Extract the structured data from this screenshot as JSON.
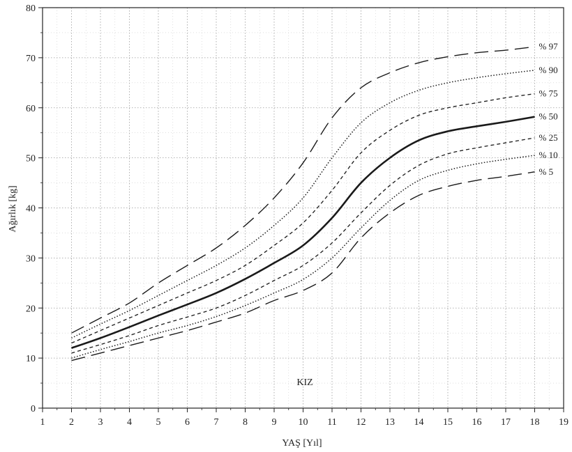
{
  "chart_data": {
    "type": "line",
    "xlabel": "YAŞ [Yıl]",
    "ylabel": "Ağırlık [kg]",
    "xlim": [
      1,
      19
    ],
    "ylim": [
      0,
      80
    ],
    "xticks": [
      1,
      2,
      3,
      4,
      5,
      6,
      7,
      8,
      9,
      10,
      11,
      12,
      13,
      14,
      15,
      16,
      17,
      18,
      19
    ],
    "yticks": [
      0,
      10,
      20,
      30,
      40,
      50,
      60,
      70,
      80
    ],
    "grid": true,
    "annotation": "KIZ",
    "x": [
      2,
      3,
      4,
      5,
      6,
      7,
      8,
      9,
      10,
      11,
      12,
      13,
      14,
      15,
      16,
      17,
      18
    ],
    "series": [
      {
        "name": "% 97",
        "style": "long-dash",
        "values": [
          15,
          18,
          21,
          25,
          28.5,
          32,
          36.5,
          42,
          49,
          58,
          64,
          67,
          69,
          70.2,
          71,
          71.5,
          72.2
        ]
      },
      {
        "name": "% 90",
        "style": "dotted",
        "values": [
          14,
          16.8,
          19.5,
          22.5,
          25.5,
          28.5,
          32,
          36.5,
          42,
          50,
          57,
          61,
          63.5,
          65,
          66,
          66.8,
          67.5
        ]
      },
      {
        "name": "% 75",
        "style": "short-dash",
        "values": [
          13,
          15.5,
          18,
          20.5,
          23,
          25.5,
          28.5,
          32.5,
          37,
          43.5,
          51,
          55.5,
          58.5,
          60,
          61,
          62,
          62.8
        ]
      },
      {
        "name": "% 50",
        "style": "solid",
        "values": [
          12,
          14,
          16.2,
          18.5,
          20.7,
          23,
          25.8,
          29,
          32.5,
          38,
          45,
          50,
          53.5,
          55.3,
          56.3,
          57.2,
          58.2
        ]
      },
      {
        "name": "% 25",
        "style": "short-dash",
        "values": [
          11,
          12.7,
          14.5,
          16.5,
          18.2,
          20,
          22.5,
          25.5,
          28.5,
          33,
          39,
          44.5,
          48.5,
          50.8,
          52,
          53,
          54
        ]
      },
      {
        "name": "% 10",
        "style": "dotted",
        "values": [
          10,
          11.7,
          13.3,
          15,
          16.5,
          18.3,
          20.5,
          23,
          25.7,
          30,
          36,
          41.5,
          45.5,
          47.5,
          48.8,
          49.7,
          50.5
        ]
      },
      {
        "name": "% 5",
        "style": "long-dash",
        "values": [
          9.5,
          11,
          12.5,
          14,
          15.5,
          17.2,
          19,
          21.5,
          23.5,
          27,
          34,
          39,
          42.5,
          44.3,
          45.5,
          46.3,
          47.2
        ]
      }
    ]
  }
}
